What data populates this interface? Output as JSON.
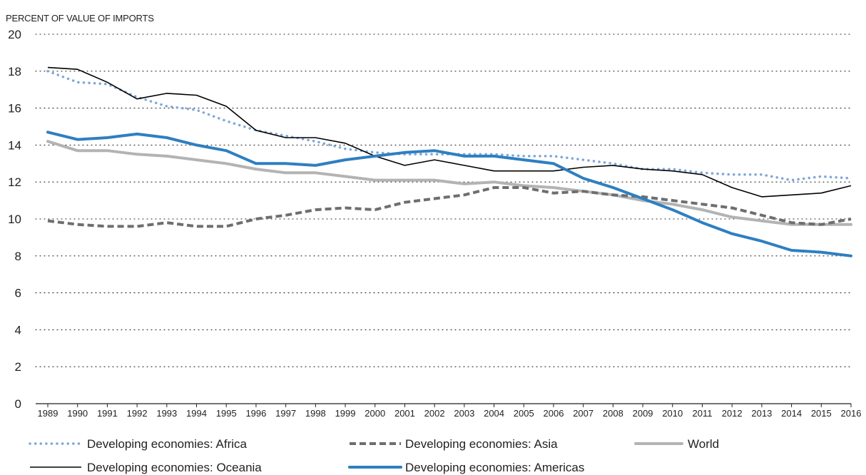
{
  "chart_data": {
    "type": "line",
    "ylabel": "PERCENT OF VALUE OF IMPORTS",
    "xlabel": "",
    "ylim": [
      0,
      20
    ],
    "yticks": [
      0,
      2,
      4,
      6,
      8,
      10,
      12,
      14,
      16,
      18,
      20
    ],
    "grid": "horizontal dotted",
    "legend_position": "bottom",
    "x": [
      "1989",
      "1990",
      "1991",
      "1992",
      "1993",
      "1994",
      "1995",
      "1996",
      "1997",
      "1998",
      "1999",
      "2000",
      "2001",
      "2002",
      "2003",
      "2004",
      "2005",
      "2006",
      "2007",
      "2008",
      "2009",
      "2010",
      "2011",
      "2012",
      "2013",
      "2014",
      "2015",
      "2016"
    ],
    "series": [
      {
        "name": "Developing economies: Africa",
        "color": "#7fa6d8",
        "style": "dotted",
        "values": [
          18.0,
          17.4,
          17.3,
          16.6,
          16.1,
          15.9,
          15.3,
          14.8,
          14.5,
          14.2,
          13.8,
          13.6,
          13.5,
          13.5,
          13.5,
          13.5,
          13.4,
          13.4,
          13.2,
          13.0,
          12.7,
          12.7,
          12.5,
          12.4,
          12.4,
          12.1,
          12.3,
          12.2
        ]
      },
      {
        "name": "Developing economies: Asia",
        "color": "#6d6e71",
        "style": "dashed",
        "values": [
          9.9,
          9.7,
          9.6,
          9.6,
          9.8,
          9.6,
          9.6,
          10.0,
          10.2,
          10.5,
          10.6,
          10.5,
          10.9,
          11.1,
          11.3,
          11.7,
          11.7,
          11.4,
          11.5,
          11.3,
          11.2,
          11.0,
          10.8,
          10.6,
          10.2,
          9.8,
          9.7,
          10.0
        ]
      },
      {
        "name": "World",
        "color": "#b3b3b3",
        "style": "solid-thick",
        "values": [
          14.2,
          13.7,
          13.7,
          13.5,
          13.4,
          13.2,
          13.0,
          12.7,
          12.5,
          12.5,
          12.3,
          12.1,
          12.1,
          12.1,
          11.9,
          12.0,
          11.8,
          11.7,
          11.5,
          11.3,
          11.0,
          10.8,
          10.5,
          10.1,
          9.9,
          9.7,
          9.7,
          9.7
        ]
      },
      {
        "name": "Developing economies: Oceania",
        "color": "#000000",
        "style": "solid-thin",
        "values": [
          18.2,
          18.1,
          17.4,
          16.5,
          16.8,
          16.7,
          16.1,
          14.8,
          14.4,
          14.4,
          14.1,
          13.4,
          12.9,
          13.2,
          12.9,
          12.6,
          12.6,
          12.6,
          12.8,
          12.9,
          12.7,
          12.6,
          12.4,
          11.7,
          11.2,
          11.3,
          11.4,
          11.8
        ]
      },
      {
        "name": "Developing economies: Americas",
        "color": "#2e7fc1",
        "style": "solid-thick",
        "values": [
          14.7,
          14.3,
          14.4,
          14.6,
          14.4,
          14.0,
          13.7,
          13.0,
          13.0,
          12.9,
          13.2,
          13.4,
          13.6,
          13.7,
          13.4,
          13.4,
          13.2,
          13.0,
          12.2,
          11.7,
          11.1,
          10.5,
          9.8,
          9.2,
          8.8,
          8.3,
          8.2,
          8.0
        ]
      }
    ]
  }
}
